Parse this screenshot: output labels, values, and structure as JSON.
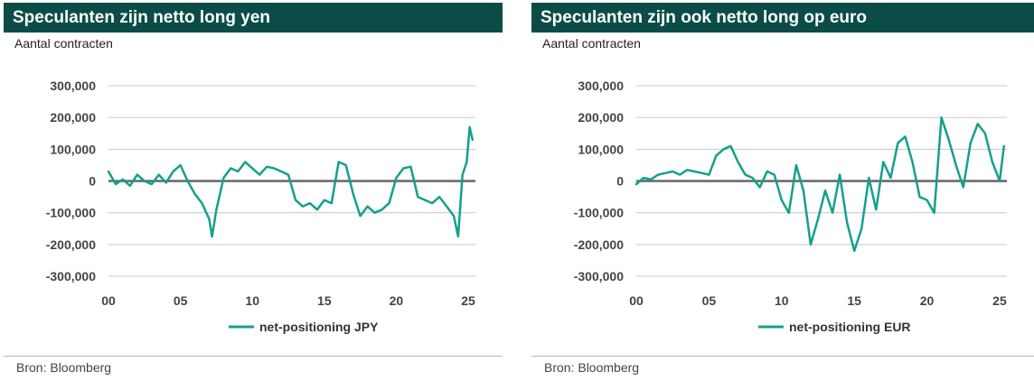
{
  "charts": [
    {
      "title": "Speculanten zijn netto long yen",
      "subtitle": "Aantal contracten",
      "source": "Bron: Bloomberg",
      "chart_data": {
        "type": "line",
        "title": "Speculanten zijn netto long yen",
        "ylabel": "Aantal contracten",
        "xlabel": "",
        "xlim": [
          0,
          25.5
        ],
        "ylim": [
          -300000,
          300000
        ],
        "x_ticks": [
          0,
          5,
          10,
          15,
          20,
          25
        ],
        "x_tick_labels": [
          "00",
          "05",
          "10",
          "15",
          "20",
          "25"
        ],
        "y_ticks": [
          300000,
          200000,
          100000,
          0,
          -100000,
          -200000,
          -300000
        ],
        "y_tick_labels": [
          "300,000",
          "200,000",
          "100,000",
          "0",
          "-100,000",
          "-200,000",
          "-300,000"
        ],
        "grid": true,
        "legend": "bottom-center",
        "series": [
          {
            "name": "net-positioning JPY",
            "color": "#14a08e",
            "x": [
              0,
              0.5,
              1,
              1.5,
              2,
              2.5,
              3,
              3.5,
              4,
              4.5,
              5,
              5.5,
              6,
              6.5,
              7,
              7.2,
              7.5,
              8,
              8.5,
              9,
              9.5,
              10,
              10.5,
              11,
              11.5,
              12,
              12.5,
              13,
              13.5,
              14,
              14.5,
              15,
              15.5,
              16,
              16.5,
              17,
              17.5,
              18,
              18.5,
              19,
              19.5,
              20,
              20.5,
              21,
              21.5,
              22,
              22.5,
              23,
              23.5,
              24,
              24.3,
              24.6,
              24.9,
              25.1,
              25.3
            ],
            "values": [
              30000,
              -10000,
              5000,
              -15000,
              20000,
              0,
              -10000,
              20000,
              -5000,
              30000,
              50000,
              0,
              -40000,
              -70000,
              -120000,
              -175000,
              -90000,
              10000,
              40000,
              30000,
              60000,
              40000,
              20000,
              45000,
              40000,
              30000,
              20000,
              -60000,
              -80000,
              -70000,
              -90000,
              -60000,
              -70000,
              60000,
              50000,
              -40000,
              -110000,
              -80000,
              -100000,
              -90000,
              -70000,
              10000,
              40000,
              45000,
              -50000,
              -60000,
              -70000,
              -50000,
              -80000,
              -110000,
              -175000,
              20000,
              60000,
              170000,
              130000
            ]
          }
        ]
      }
    },
    {
      "title": "Speculanten zijn ook netto long op euro",
      "subtitle": "Aantal contracten",
      "source": "Bron: Bloomberg",
      "chart_data": {
        "type": "line",
        "title": "Speculanten zijn ook netto long op euro",
        "ylabel": "Aantal contracten",
        "xlabel": "",
        "xlim": [
          0,
          25.5
        ],
        "ylim": [
          -300000,
          300000
        ],
        "x_ticks": [
          0,
          5,
          10,
          15,
          20,
          25
        ],
        "x_tick_labels": [
          "00",
          "05",
          "10",
          "15",
          "20",
          "25"
        ],
        "y_ticks": [
          300000,
          200000,
          100000,
          0,
          -100000,
          -200000,
          -300000
        ],
        "y_tick_labels": [
          "300,000",
          "200,000",
          "100,000",
          "0",
          "-100,000",
          "-200,000",
          "-300,000"
        ],
        "grid": true,
        "legend": "bottom-center",
        "series": [
          {
            "name": "net-positioning EUR",
            "color": "#14a08e",
            "x": [
              0,
              0.5,
              1,
              1.5,
              2,
              2.5,
              3,
              3.5,
              4,
              4.5,
              5,
              5.5,
              6,
              6.5,
              7,
              7.5,
              8,
              8.5,
              9,
              9.5,
              10,
              10.5,
              11,
              11.5,
              12,
              12.5,
              13,
              13.5,
              14,
              14.5,
              15,
              15.5,
              16,
              16.5,
              17,
              17.5,
              18,
              18.5,
              19,
              19.5,
              20,
              20.5,
              21,
              21.5,
              22,
              22.5,
              23,
              23.5,
              24,
              24.5,
              25,
              25.3
            ],
            "values": [
              -10000,
              10000,
              5000,
              20000,
              25000,
              30000,
              20000,
              35000,
              30000,
              25000,
              20000,
              80000,
              100000,
              110000,
              60000,
              20000,
              10000,
              -20000,
              30000,
              20000,
              -60000,
              -100000,
              50000,
              -30000,
              -200000,
              -120000,
              -30000,
              -100000,
              20000,
              -130000,
              -220000,
              -150000,
              10000,
              -90000,
              60000,
              10000,
              120000,
              140000,
              60000,
              -50000,
              -60000,
              -100000,
              200000,
              130000,
              50000,
              -20000,
              120000,
              180000,
              150000,
              60000,
              0,
              110000
            ]
          }
        ]
      }
    }
  ]
}
